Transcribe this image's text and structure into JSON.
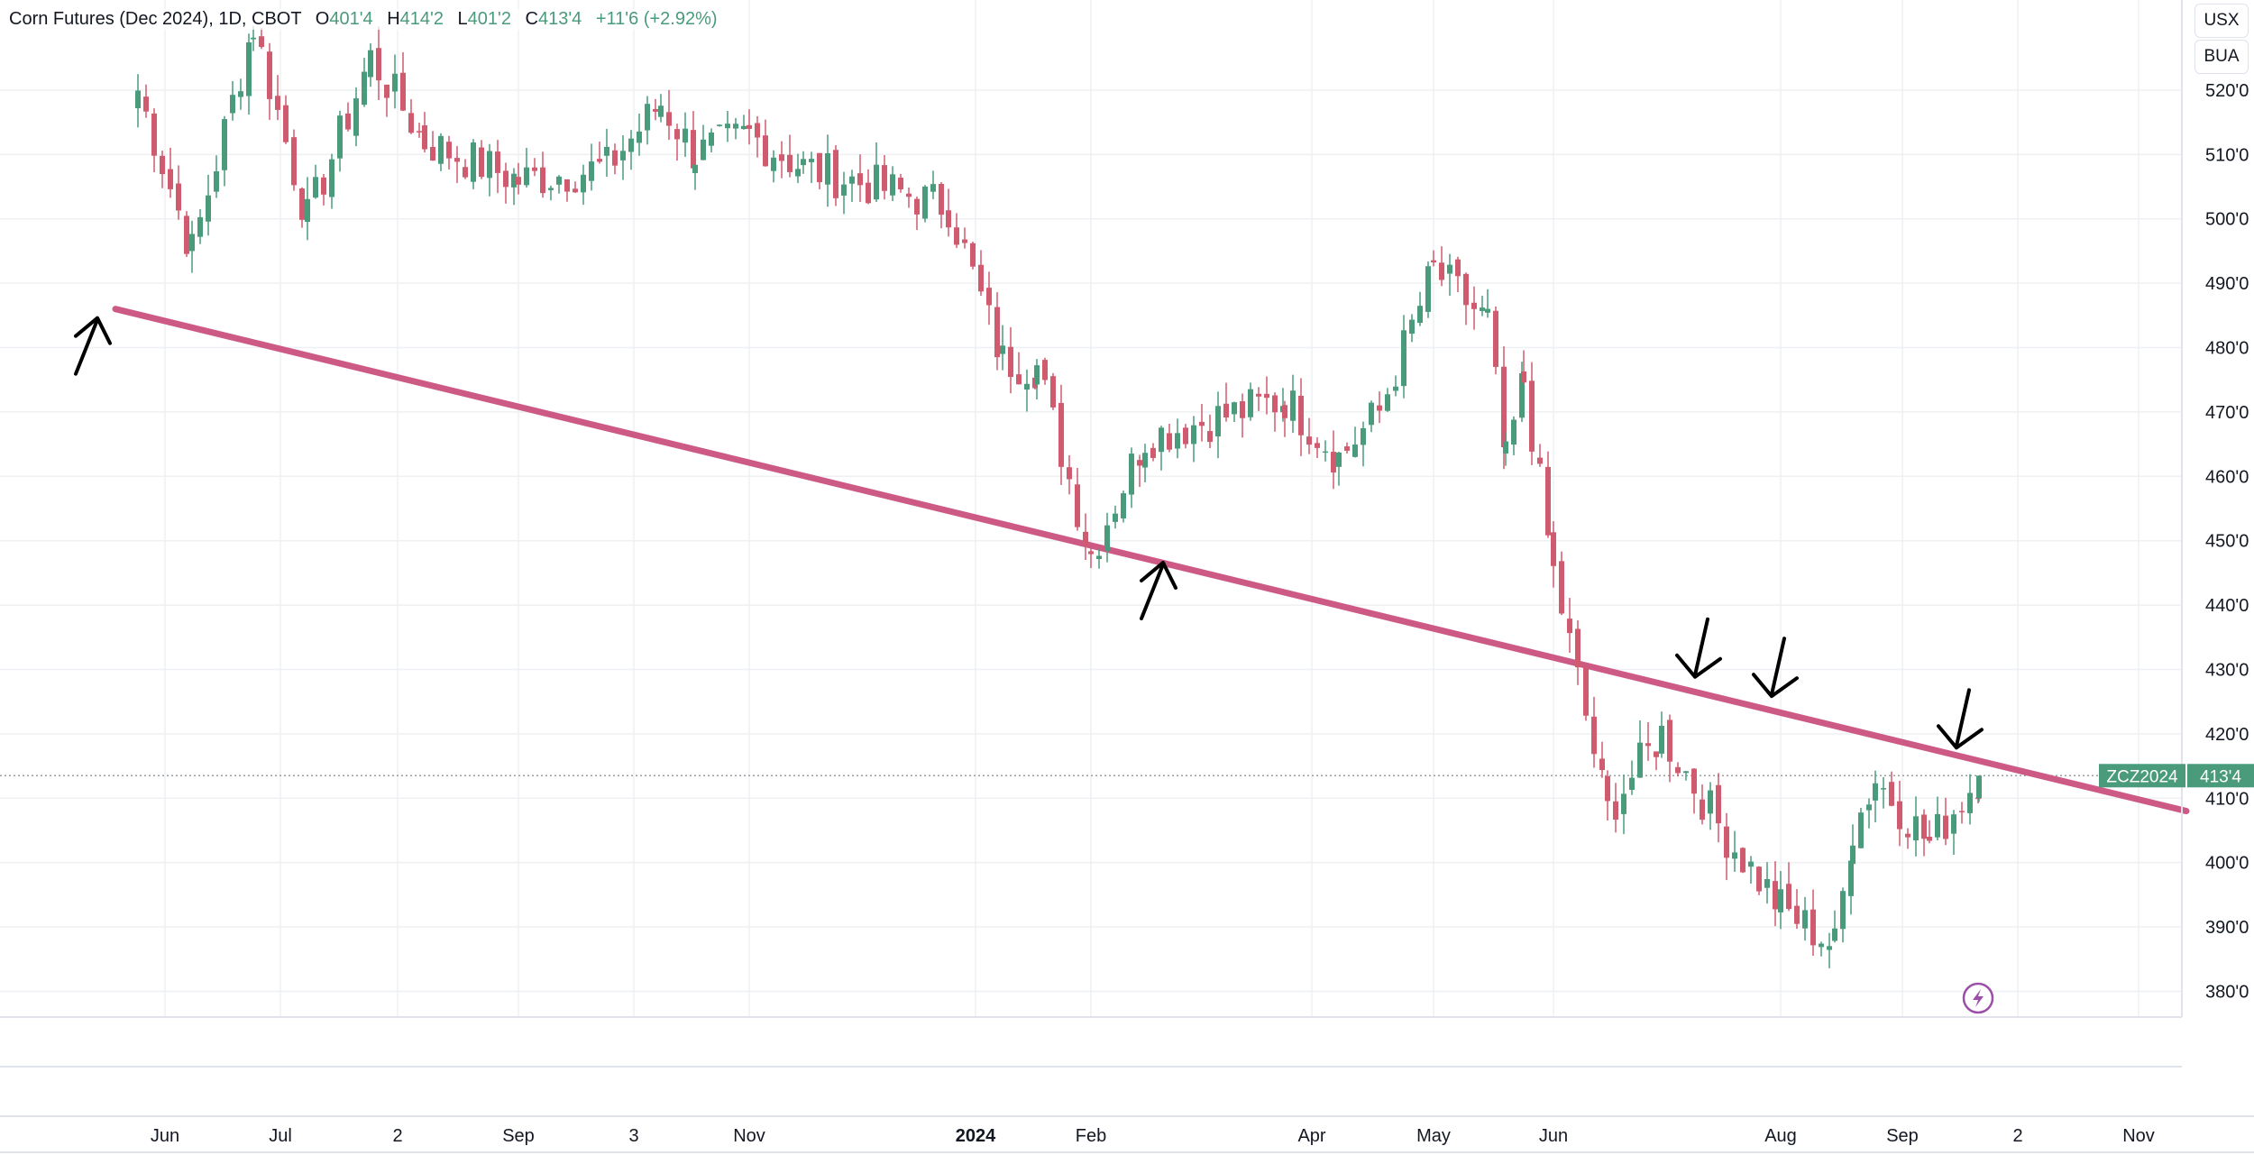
{
  "header": {
    "symbol_name": "Corn Futures (Dec 2024), 1D, CBOT",
    "open_label": "O",
    "open_value": "401'4",
    "high_label": "H",
    "high_value": "414'2",
    "low_label": "L",
    "low_value": "401'2",
    "close_label": "C",
    "close_value": "413'4",
    "change": "+11'6 (+2.92%)"
  },
  "toolbar": {
    "usx_label": "USX",
    "bua_label": "BUA"
  },
  "price_badge": {
    "ticker": "ZCZ2024",
    "price": "413'4",
    "color": "#4a9a7c"
  },
  "colors": {
    "up": "#4a9a7c",
    "down": "#d05a6e",
    "trendline": "#cd5a84",
    "arrows": "#000000",
    "grid": "#eef0f3"
  },
  "icons": {
    "bottom_right": "lightning-icon"
  },
  "chart_data": {
    "type": "candlestick",
    "title": "Corn Futures (Dec 2024), 1D, CBOT",
    "y_ticks": [
      "520'0",
      "510'0",
      "500'0",
      "490'0",
      "480'0",
      "470'0",
      "460'0",
      "450'0",
      "440'0",
      "430'0",
      "420'0",
      "410'0",
      "400'0",
      "390'0",
      "380'0"
    ],
    "y_tick_values": [
      520,
      510,
      500,
      490,
      480,
      470,
      460,
      450,
      440,
      430,
      420,
      410,
      400,
      390,
      380
    ],
    "ylim": [
      376,
      534
    ],
    "x_ticks": [
      "Jun",
      "Jul",
      "2",
      "Sep",
      "3",
      "Nov",
      "2024",
      "Feb",
      "Apr",
      "May",
      "Jun",
      "Aug",
      "Sep",
      "2",
      "Nov"
    ],
    "x_bold": "2024",
    "grid": true,
    "last_price": 413.5,
    "price_path": [
      {
        "label": "Jun",
        "price": 520
      },
      {
        "label": "Jun",
        "price": 495
      },
      {
        "label": "Jul",
        "price": 530
      },
      {
        "label": "Jul",
        "price": 500
      },
      {
        "label": "2",
        "price": 525
      },
      {
        "label": "2",
        "price": 512
      },
      {
        "label": "Sep",
        "price": 506
      },
      {
        "label": "3",
        "price": 508
      },
      {
        "label": "3",
        "price": 518
      },
      {
        "label": "Nov",
        "price": 510
      },
      {
        "label": "Nov",
        "price": 513
      },
      {
        "label": "Nov",
        "price": 508
      },
      {
        "label": "2024",
        "price": 502
      },
      {
        "label": "2024",
        "price": 478
      },
      {
        "label": "Feb",
        "price": 477
      },
      {
        "label": "Feb",
        "price": 448
      },
      {
        "label": "Feb",
        "price": 466
      },
      {
        "label": "Apr",
        "price": 472
      },
      {
        "label": "Apr",
        "price": 463
      },
      {
        "label": "May",
        "price": 470
      },
      {
        "label": "May",
        "price": 492
      },
      {
        "label": "May",
        "price": 484
      },
      {
        "label": "Jun",
        "price": 462
      },
      {
        "label": "Jun",
        "price": 475
      },
      {
        "label": "Jun",
        "price": 445
      },
      {
        "label": "Jun",
        "price": 408
      },
      {
        "label": "Jun",
        "price": 420
      },
      {
        "label": "Aug",
        "price": 404
      },
      {
        "label": "Aug",
        "price": 393
      },
      {
        "label": "Aug",
        "price": 387
      },
      {
        "label": "Sep",
        "price": 405
      },
      {
        "label": "Sep",
        "price": 413
      },
      {
        "label": "Sep",
        "price": 403
      },
      {
        "label": "Sep",
        "price": 413.5
      }
    ],
    "trendline": {
      "start": {
        "label": "Jun",
        "price": 486
      },
      "end": {
        "label": "Nov",
        "price": 408
      }
    },
    "annotations": [
      {
        "type": "arrow-up",
        "label": "Jun",
        "price": 486
      },
      {
        "type": "arrow-up",
        "label": "Feb",
        "price": 448
      },
      {
        "type": "arrow-down",
        "label": "Jun",
        "price": 428
      },
      {
        "type": "arrow-down",
        "label": "Aug",
        "price": 425
      },
      {
        "type": "arrow-down",
        "label": "Sep",
        "price": 417
      }
    ]
  }
}
